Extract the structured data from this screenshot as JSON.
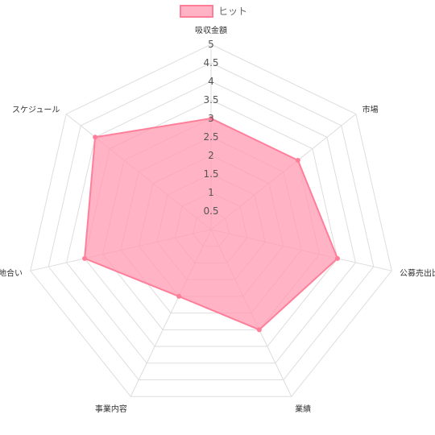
{
  "chart_data": {
    "type": "radar",
    "axes": [
      "吸収金額",
      "市場",
      "公募売出比",
      "業績",
      "事業内容",
      "地合い",
      "スケジュール"
    ],
    "range": [
      0,
      5
    ],
    "ticks": [
      "0.5",
      "1",
      "1.5",
      "2",
      "2.5",
      "3",
      "3.5",
      "4",
      "4.5",
      "5"
    ],
    "grid": true,
    "legend_position": "top",
    "series": [
      {
        "name": "ヒット",
        "values": [
          3,
          3,
          3.5,
          3,
          2,
          3.5,
          4
        ],
        "fill_color": "#ff99b0",
        "line_color": "#ff7f9a"
      }
    ]
  }
}
